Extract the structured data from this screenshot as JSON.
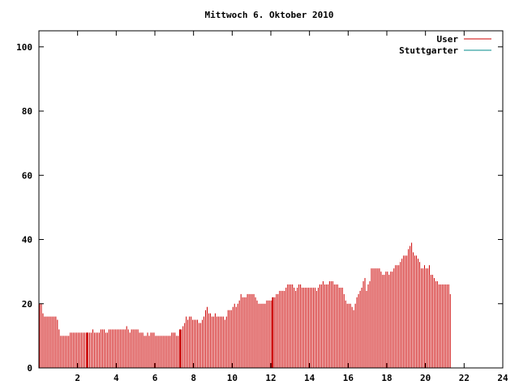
{
  "chart_data": {
    "type": "bar",
    "title": "Mittwoch 6. Oktober 2010",
    "xlabel": "",
    "ylabel": "",
    "xlim": [
      0,
      24
    ],
    "ylim": [
      0,
      105
    ],
    "x_ticks": [
      "2",
      "4",
      "6",
      "8",
      "10",
      "12",
      "14",
      "16",
      "18",
      "20",
      "22",
      "24"
    ],
    "y_ticks": [
      "0",
      "20",
      "40",
      "60",
      "80",
      "100"
    ],
    "legend_position": "top-right",
    "grid": false,
    "series": [
      {
        "name": "User",
        "color": "#cc0000",
        "interval_hours": 0.0833,
        "values": [
          20,
          20,
          17,
          16,
          16,
          16,
          16,
          16,
          16,
          16,
          16,
          15,
          12,
          10,
          10,
          10,
          10,
          10,
          10,
          11,
          11,
          11,
          11,
          11,
          11,
          11,
          11,
          11,
          11,
          11,
          11,
          11,
          11,
          12,
          11,
          11,
          11,
          11,
          12,
          12,
          12,
          11,
          11,
          12,
          12,
          12,
          12,
          12,
          12,
          12,
          12,
          12,
          12,
          12,
          13,
          12,
          11,
          12,
          12,
          12,
          12,
          12,
          11,
          11,
          11,
          10,
          10,
          11,
          10,
          11,
          11,
          11,
          10,
          10,
          10,
          10,
          10,
          10,
          10,
          10,
          10,
          10,
          11,
          11,
          11,
          10,
          10,
          11,
          12,
          13,
          14,
          16,
          15,
          16,
          16,
          15,
          15,
          15,
          15,
          14,
          14,
          15,
          16,
          18,
          19,
          17,
          17,
          16,
          16,
          17,
          16,
          16,
          16,
          16,
          16,
          15,
          16,
          18,
          18,
          18,
          19,
          20,
          19,
          20,
          21,
          23,
          22,
          22,
          22,
          23,
          23,
          23,
          23,
          23,
          22,
          21,
          20,
          20,
          20,
          20,
          20,
          21,
          21,
          21,
          21,
          22,
          22,
          23,
          23,
          24,
          24,
          24,
          24,
          25,
          26,
          26,
          26,
          26,
          25,
          24,
          25,
          26,
          26,
          25,
          25,
          25,
          25,
          25,
          25,
          25,
          25,
          25,
          24,
          25,
          26,
          26,
          27,
          26,
          26,
          26,
          27,
          27,
          27,
          26,
          26,
          26,
          25,
          25,
          25,
          23,
          21,
          20,
          20,
          20,
          19,
          18,
          20,
          22,
          23,
          24,
          25,
          27,
          28,
          24,
          26,
          27,
          31,
          31,
          31,
          31,
          31,
          31,
          30,
          29,
          29,
          30,
          30,
          29,
          30,
          30,
          31,
          32,
          32,
          32,
          33,
          34,
          35,
          35,
          35,
          37,
          38,
          39,
          36,
          35,
          35,
          34,
          33,
          31,
          31,
          32,
          31,
          31,
          32,
          29,
          29,
          28,
          27,
          27,
          26,
          26,
          26,
          26,
          26,
          26,
          26,
          23
        ]
      },
      {
        "name": "Stuttgarter",
        "color": "#008b8b",
        "values": []
      }
    ],
    "annotations": "Tall red vertical marks near 2.5 h, 7.3 h, 12.1 h and 21.7 h extend to 0"
  }
}
